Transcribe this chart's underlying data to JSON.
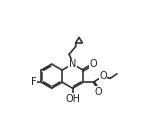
{
  "lw": 1.2,
  "lc": "#333333",
  "fs": 6.5,
  "xlim": [
    -1.5,
    10.5
  ],
  "ylim": [
    -1.5,
    9.5
  ]
}
